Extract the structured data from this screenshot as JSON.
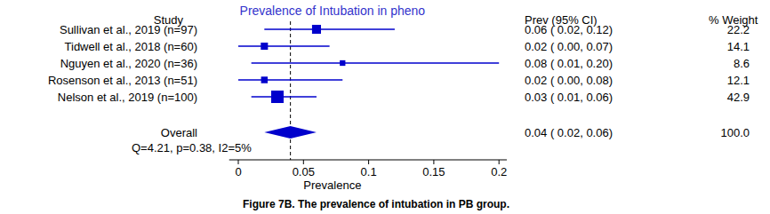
{
  "chart_data": {
    "type": "forest",
    "title": "Prevalence of Intubation in pheno",
    "x_label": "Prevalence",
    "study_header": "Study",
    "estimate_header": "Prev (95% CI)",
    "weight_header": "% Weight",
    "categories": [
      "Sullivan et al., 2019 (n=97)",
      "Tidwell et al., 2018 (n=60)",
      "Nguyen et al., 2020 (n=36)",
      "Rosenson et al., 2013 (n=51)",
      "Nelson et al., 2019 (n=100)"
    ],
    "values": [
      0.06,
      0.02,
      0.08,
      0.02,
      0.03
    ],
    "lower": [
      0.02,
      0.0,
      0.01,
      0.0,
      0.01
    ],
    "upper": [
      0.12,
      0.07,
      0.2,
      0.08,
      0.06
    ],
    "value_labels": [
      "0.06 ( 0.02, 0.12)",
      "0.02 ( 0.00, 0.07)",
      "0.08 ( 0.01, 0.20)",
      "0.02 ( 0.00, 0.08)",
      "0.03 ( 0.01, 0.06)"
    ],
    "weights": [
      22.2,
      14.1,
      8.6,
      12.1,
      42.9
    ],
    "overall": {
      "label": "Overall",
      "value": 0.04,
      "lower": 0.02,
      "upper": 0.06,
      "value_label": "0.04 ( 0.02, 0.06)",
      "weight": 100,
      "weight_label": "100.0"
    },
    "heterogeneity": "Q=4.21, p=0.38, I2=5%",
    "xlim": [
      -0.007,
      0.206
    ],
    "xticks": [
      0,
      0.05,
      0.1,
      0.15,
      0.2
    ],
    "color": "#0000cc",
    "caption": "Figure 7B. The prevalence of intubation in PB group."
  }
}
